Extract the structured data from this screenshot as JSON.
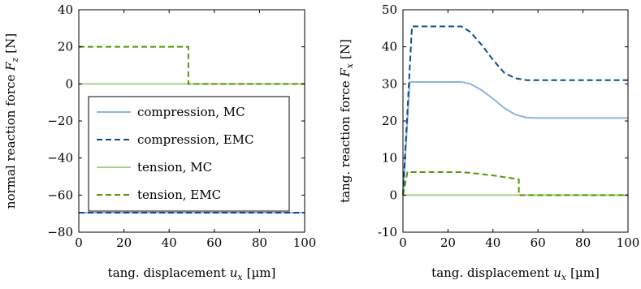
{
  "chart_data": [
    {
      "type": "line",
      "ylabel": "normal reaction force",
      "ylabel_symbol": "F",
      "ylabel_subscript": "z",
      "ylabel_unit": "[N]",
      "xlabel": "tang. displacement",
      "xlabel_symbol": "u",
      "xlabel_subscript": "x",
      "xlabel_unit": "[µm]",
      "xlim": [
        0,
        100
      ],
      "ylim": [
        -80,
        40
      ],
      "xticks": [
        0,
        20,
        40,
        60,
        80,
        100
      ],
      "yticks": [
        -80,
        -60,
        -40,
        -20,
        0,
        20,
        40
      ],
      "ytick_labels": [
        "−80",
        "−60",
        "−40",
        "−20",
        "0",
        "20",
        "40"
      ],
      "grid": false,
      "legend_position": "lower-left",
      "series": [
        {
          "name": "compression, MC",
          "color": "#8fb3df",
          "dash": "solid",
          "x": [
            0,
            100
          ],
          "y": [
            -69.5,
            -69.5
          ]
        },
        {
          "name": "compression, EMC",
          "color": "#0d4a8c",
          "dash": "dashed",
          "x": [
            0,
            100
          ],
          "y": [
            -69.5,
            -69.5
          ]
        },
        {
          "name": "tension, MC",
          "color": "#a9d18e",
          "dash": "solid",
          "x": [
            0,
            100
          ],
          "y": [
            0,
            0
          ]
        },
        {
          "name": "tension, EMC",
          "color": "#4e9a06",
          "dash": "dashed",
          "x": [
            0,
            48.5,
            48.5,
            100
          ],
          "y": [
            20,
            20,
            0,
            0
          ]
        }
      ]
    },
    {
      "type": "line",
      "ylabel": "tang. reaction force",
      "ylabel_symbol": "F",
      "ylabel_subscript": "x",
      "ylabel_unit": "[N]",
      "xlabel": "tang. displacement",
      "xlabel_symbol": "u",
      "xlabel_subscript": "x",
      "xlabel_unit": "[µm]",
      "xlim": [
        0,
        100
      ],
      "ylim": [
        -10,
        50
      ],
      "xticks": [
        0,
        20,
        40,
        60,
        80,
        100
      ],
      "yticks": [
        -10,
        0,
        10,
        20,
        30,
        40,
        50
      ],
      "ytick_labels": [
        "-10",
        "0",
        "10",
        "20",
        "30",
        "40",
        "50"
      ],
      "grid": false,
      "legend_position": "none",
      "series": [
        {
          "name": "compression, MC",
          "color": "#8fb3df",
          "dash": "solid",
          "x": [
            0,
            3,
            5,
            10,
            20,
            26,
            30,
            35,
            40,
            45,
            50,
            55,
            60,
            70,
            80,
            90,
            100
          ],
          "y": [
            0,
            30.5,
            30.5,
            30.5,
            30.5,
            30.5,
            30,
            28.3,
            26,
            23.5,
            21.7,
            20.9,
            20.8,
            20.8,
            20.8,
            20.8,
            20.8
          ]
        },
        {
          "name": "compression, EMC",
          "color": "#0d4a8c",
          "dash": "dashed",
          "x": [
            0,
            4,
            5,
            10,
            20,
            26,
            30,
            35,
            40,
            45,
            50,
            55,
            60,
            70,
            80,
            90,
            100
          ],
          "y": [
            0,
            45.5,
            45.5,
            45.5,
            45.5,
            45.5,
            44,
            40.5,
            36.5,
            33,
            31.5,
            31,
            31,
            31,
            31,
            31,
            31
          ]
        },
        {
          "name": "tension, MC",
          "color": "#a9d18e",
          "dash": "solid",
          "x": [
            0,
            100
          ],
          "y": [
            0,
            0
          ]
        },
        {
          "name": "tension, EMC",
          "color": "#4e9a06",
          "dash": "dashed",
          "x": [
            0,
            2,
            10,
            20,
            26,
            30,
            40,
            50,
            51.5,
            51.5,
            60,
            80,
            100
          ],
          "y": [
            0,
            6.2,
            6.2,
            6.2,
            6.2,
            6.0,
            5.3,
            4.4,
            4.3,
            0,
            0,
            0,
            0
          ]
        }
      ]
    }
  ]
}
